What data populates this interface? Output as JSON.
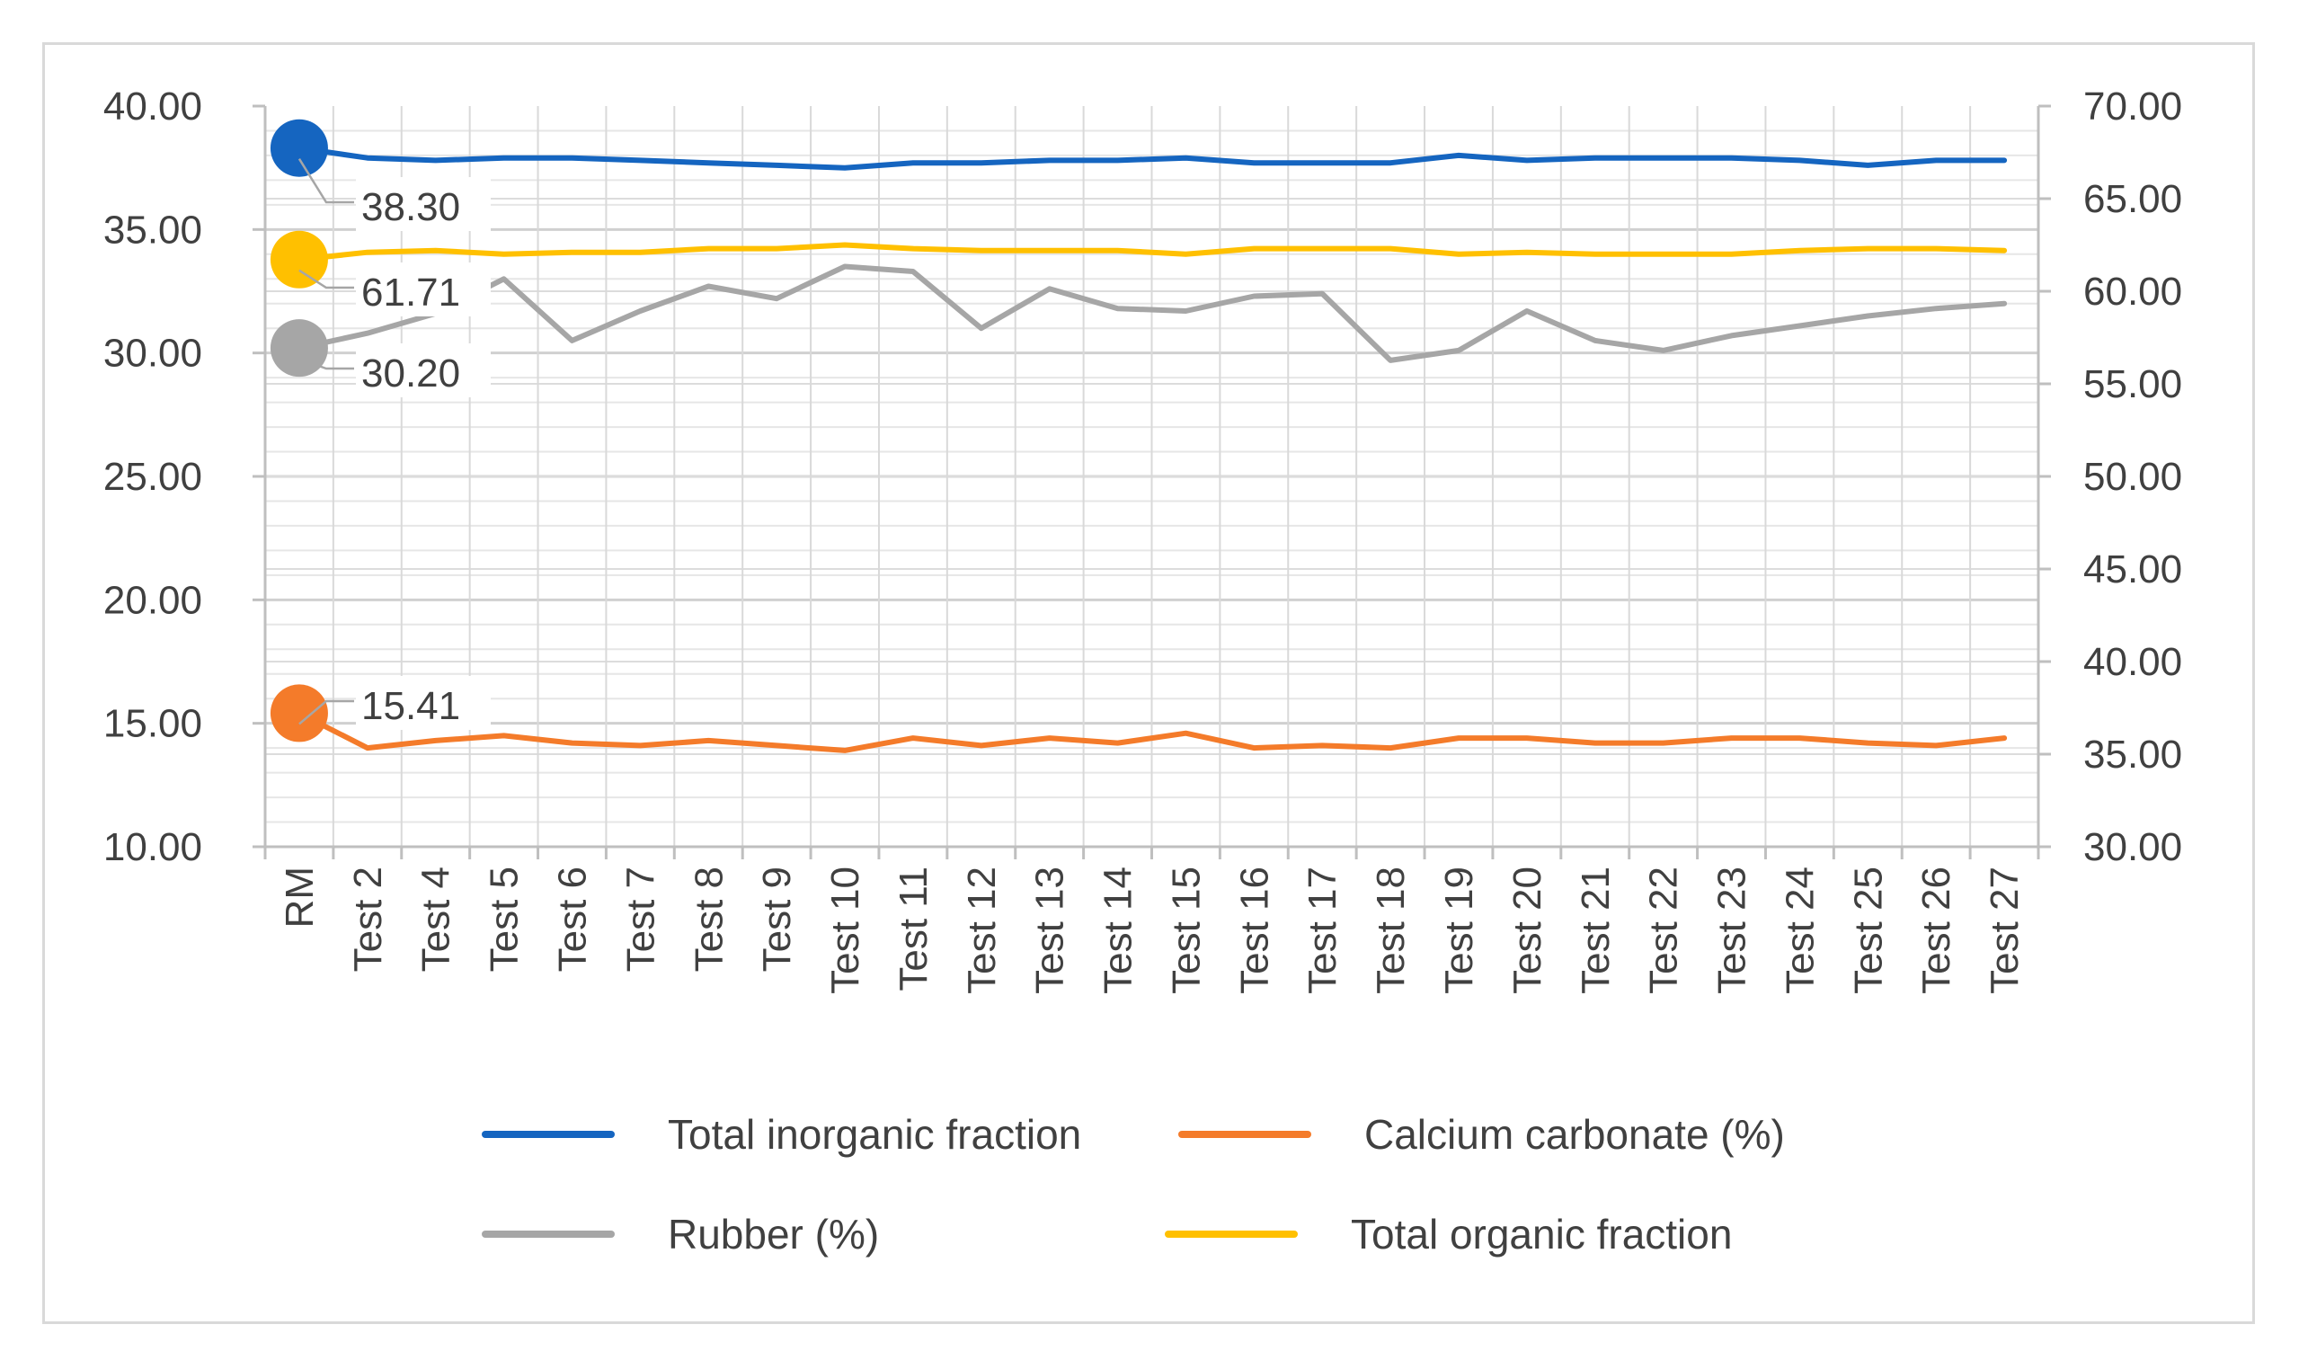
{
  "chart_data": {
    "type": "line",
    "title": "",
    "categories": [
      "RM",
      "Test 2",
      "Test 4",
      "Test 5",
      "Test 6",
      "Test 7",
      "Test 8",
      "Test 9",
      "Test 10",
      "Test 11",
      "Test 12",
      "Test 13",
      "Test 14",
      "Test 15",
      "Test 16",
      "Test 17",
      "Test 18",
      "Test 19",
      "Test 20",
      "Test 21",
      "Test 22",
      "Test 23",
      "Test 24",
      "Test 25",
      "Test 26",
      "Test 27"
    ],
    "left_axis": {
      "ylim": [
        10,
        40
      ],
      "ticks": [
        "10.00",
        "15.00",
        "20.00",
        "25.00",
        "30.00",
        "35.00",
        "40.00"
      ]
    },
    "right_axis": {
      "ylim": [
        30,
        70
      ],
      "ticks": [
        "30.00",
        "35.00",
        "40.00",
        "45.00",
        "50.00",
        "55.00",
        "60.00",
        "65.00",
        "70.00"
      ]
    },
    "series": [
      {
        "name": "Total inorganic fraction",
        "axis": "left",
        "color": "#1565c0",
        "values": [
          38.3,
          37.9,
          37.8,
          37.9,
          37.9,
          37.8,
          37.7,
          37.6,
          37.5,
          37.7,
          37.7,
          37.8,
          37.8,
          37.9,
          37.7,
          37.7,
          37.7,
          38.0,
          37.8,
          37.9,
          37.9,
          37.9,
          37.8,
          37.6,
          37.8,
          37.8
        ],
        "label": "38.30"
      },
      {
        "name": "Calcium carbonate (%)",
        "axis": "left",
        "color": "#f47b2a",
        "values": [
          15.41,
          14.0,
          14.3,
          14.5,
          14.2,
          14.1,
          14.3,
          14.1,
          13.9,
          14.4,
          14.1,
          14.4,
          14.2,
          14.6,
          14.0,
          14.1,
          14.0,
          14.4,
          14.4,
          14.2,
          14.2,
          14.4,
          14.4,
          14.2,
          14.1,
          14.4
        ],
        "label": "15.41"
      },
      {
        "name": "Rubber (%)",
        "axis": "left",
        "color": "#a6a6a6",
        "values": [
          30.2,
          30.8,
          31.6,
          33.0,
          30.5,
          31.7,
          32.7,
          32.2,
          33.5,
          33.3,
          31.0,
          32.6,
          31.8,
          31.7,
          32.3,
          32.4,
          29.7,
          30.1,
          31.7,
          30.5,
          30.1,
          30.7,
          31.1,
          31.5,
          31.8,
          32.0
        ],
        "label": "30.20"
      },
      {
        "name": "Total organic fraction",
        "axis": "right",
        "color": "#ffc000",
        "values": [
          61.71,
          62.1,
          62.2,
          62.0,
          62.1,
          62.1,
          62.3,
          62.3,
          62.5,
          62.3,
          62.2,
          62.2,
          62.2,
          62.0,
          62.3,
          62.3,
          62.3,
          62.0,
          62.1,
          62.0,
          62.0,
          62.0,
          62.2,
          62.3,
          62.3,
          62.2
        ],
        "label": "61.71"
      }
    ],
    "legend": {
      "placement": "bottom",
      "entries": [
        "Total inorganic fraction",
        "Calcium carbonate (%)",
        "Rubber (%)",
        "Total organic fraction"
      ]
    },
    "gridlines": true
  }
}
